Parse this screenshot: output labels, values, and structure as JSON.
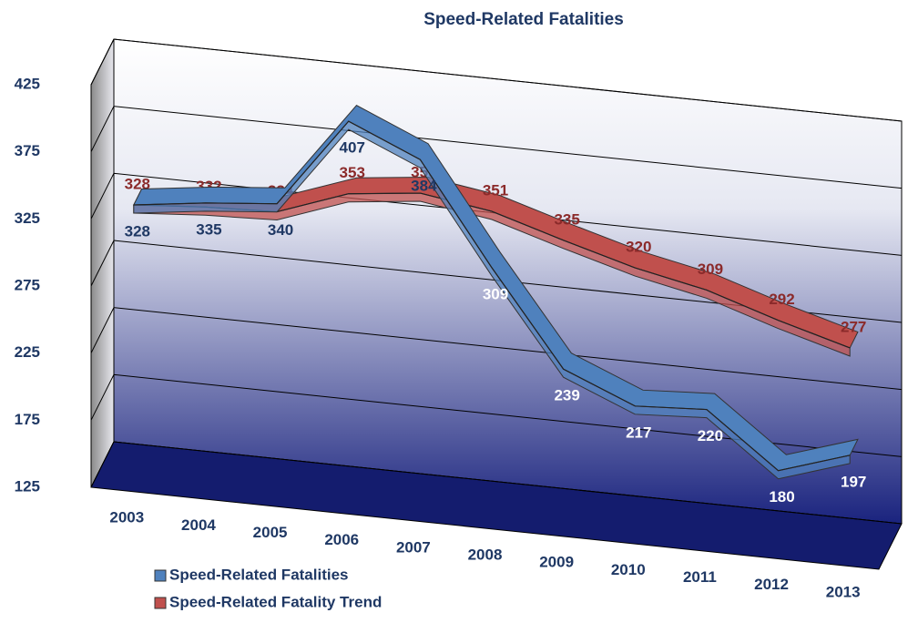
{
  "chart_data": {
    "type": "line",
    "title": "Speed-Related Fatalities",
    "categories": [
      "2003",
      "2004",
      "2005",
      "2006",
      "2007",
      "2008",
      "2009",
      "2010",
      "2011",
      "2012",
      "2013"
    ],
    "series": [
      {
        "name": "Speed-Related Fatalities",
        "color": "#4f81bd",
        "values": [
          328,
          335,
          340,
          407,
          384,
          309,
          239,
          217,
          220,
          180,
          197
        ]
      },
      {
        "name": "Speed-Related Fatality Trend",
        "color": "#c0504d",
        "values": [
          328,
          332,
          334,
          353,
          359,
          351,
          335,
          320,
          309,
          292,
          277
        ]
      }
    ],
    "ylim": [
      125,
      425
    ],
    "yticks": [
      125,
      175,
      225,
      275,
      325,
      375,
      425
    ],
    "grid": true,
    "legend": "bottom"
  }
}
